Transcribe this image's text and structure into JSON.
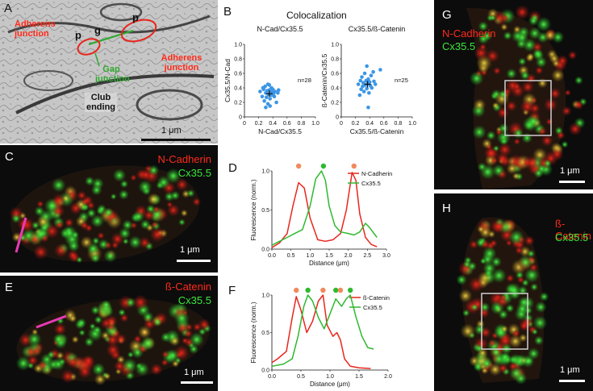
{
  "panels": {
    "A": {
      "letter": "A",
      "labels": {
        "adherens_left": "Adherens junction",
        "adherens_right": "Adherens junction",
        "gap": "Gap junction",
        "p1": "p",
        "p2": "p",
        "g": "g",
        "club": "Club ending",
        "scale": "1 μm"
      }
    },
    "B": {
      "letter": "B",
      "title": "Colocalization"
    },
    "C": {
      "letter": "C",
      "label1": "N-Cadherin",
      "label2": "Cx35.5",
      "scale": "1 μm"
    },
    "D": {
      "letter": "D"
    },
    "E": {
      "letter": "E",
      "label1": "ß-Catenin",
      "label2": "Cx35.5",
      "scale": "1 μm"
    },
    "F": {
      "letter": "F"
    },
    "G": {
      "letter": "G",
      "label1": "N-Cadherin",
      "label2": "Cx35.5",
      "scale": "1 μm"
    },
    "H": {
      "letter": "H",
      "label1": "ß-Catenin",
      "label2": "Cx35.5",
      "scale": "1 μm"
    }
  },
  "colors": {
    "red": "#e8261d",
    "green": "#2fb92f",
    "orange": "#f08a5d",
    "blue": "#3b96e6",
    "gap_green": "#2ea82e"
  },
  "chart_data": [
    {
      "type": "scatter",
      "title": "N-Cad/Cx35.5",
      "xlabel": "N-Cad/Cx35.5",
      "ylabel": "Cx35.5/N-Cad",
      "xlim": [
        0,
        1.0
      ],
      "ylim": [
        0,
        1.0
      ],
      "xticks": [
        "0",
        "0.2",
        "0.4",
        "0.6",
        "0.8",
        "1.0"
      ],
      "yticks": [
        "0",
        "0.2",
        "0.4",
        "0.6",
        "0.8",
        "1.0"
      ],
      "annotation": "n=28",
      "points": [
        [
          0.22,
          0.35
        ],
        [
          0.25,
          0.28
        ],
        [
          0.27,
          0.38
        ],
        [
          0.28,
          0.22
        ],
        [
          0.29,
          0.42
        ],
        [
          0.3,
          0.33
        ],
        [
          0.31,
          0.27
        ],
        [
          0.32,
          0.36
        ],
        [
          0.33,
          0.18
        ],
        [
          0.34,
          0.31
        ],
        [
          0.35,
          0.44
        ],
        [
          0.35,
          0.37
        ],
        [
          0.36,
          0.25
        ],
        [
          0.37,
          0.34
        ],
        [
          0.38,
          0.4
        ],
        [
          0.38,
          0.3
        ],
        [
          0.39,
          0.36
        ],
        [
          0.4,
          0.38
        ],
        [
          0.41,
          0.32
        ],
        [
          0.42,
          0.28
        ],
        [
          0.43,
          0.35
        ],
        [
          0.45,
          0.2
        ],
        [
          0.47,
          0.33
        ],
        [
          0.3,
          0.13
        ],
        [
          0.33,
          0.45
        ],
        [
          0.26,
          0.4
        ],
        [
          0.48,
          0.37
        ],
        [
          0.36,
          0.15
        ]
      ],
      "mean": [
        0.35,
        0.32
      ]
    },
    {
      "type": "scatter",
      "title": "Cx35.5/ß-Catenin",
      "xlabel": "Cx35.5/ß-Catenin",
      "ylabel": "ß-Catenin/Cx35.5",
      "xlim": [
        0,
        1.0
      ],
      "ylim": [
        0,
        1.0
      ],
      "xticks": [
        "0",
        "0.2",
        "0.4",
        "0.6",
        "0.8",
        "1.0"
      ],
      "yticks": [
        "0",
        "0.2",
        "0.4",
        "0.6",
        "0.8",
        "1.0"
      ],
      "annotation": "n=25",
      "points": [
        [
          0.24,
          0.45
        ],
        [
          0.27,
          0.5
        ],
        [
          0.28,
          0.38
        ],
        [
          0.29,
          0.55
        ],
        [
          0.3,
          0.42
        ],
        [
          0.31,
          0.47
        ],
        [
          0.32,
          0.35
        ],
        [
          0.33,
          0.6
        ],
        [
          0.34,
          0.44
        ],
        [
          0.35,
          0.5
        ],
        [
          0.36,
          0.39
        ],
        [
          0.36,
          0.7
        ],
        [
          0.37,
          0.46
        ],
        [
          0.38,
          0.52
        ],
        [
          0.39,
          0.33
        ],
        [
          0.4,
          0.48
        ],
        [
          0.41,
          0.43
        ],
        [
          0.42,
          0.57
        ],
        [
          0.43,
          0.4
        ],
        [
          0.45,
          0.62
        ],
        [
          0.46,
          0.49
        ],
        [
          0.55,
          0.65
        ],
        [
          0.38,
          0.13
        ],
        [
          0.48,
          0.45
        ],
        [
          0.26,
          0.3
        ]
      ],
      "mean": [
        0.37,
        0.45
      ]
    },
    {
      "type": "line",
      "xlabel": "Distance (μm)",
      "ylabel": "Fluorescence (norm.)",
      "xlim": [
        0,
        3.0
      ],
      "ylim": [
        0,
        1.0
      ],
      "xticks": [
        "0.0",
        "0.5",
        "1.0",
        "1.5",
        "2.0",
        "2.5",
        "3.0"
      ],
      "yticks": [
        "0.0",
        "0.5",
        "1.0"
      ],
      "series": [
        {
          "name": "N-Cadherin",
          "color": "red",
          "x": [
            0,
            0.2,
            0.4,
            0.55,
            0.7,
            0.85,
            1.0,
            1.2,
            1.4,
            1.6,
            1.8,
            1.95,
            2.1,
            2.2,
            2.3,
            2.45,
            2.6,
            2.75
          ],
          "y": [
            0.02,
            0.08,
            0.2,
            0.55,
            0.85,
            0.78,
            0.4,
            0.12,
            0.1,
            0.12,
            0.2,
            0.5,
            0.98,
            0.88,
            0.45,
            0.15,
            0.06,
            0.03
          ]
        },
        {
          "name": "Cx35.5",
          "color": "green",
          "x": [
            0,
            0.2,
            0.4,
            0.6,
            0.8,
            1.0,
            1.15,
            1.3,
            1.4,
            1.5,
            1.65,
            1.8,
            2.0,
            2.15,
            2.3,
            2.45,
            2.55,
            2.75
          ],
          "y": [
            0.05,
            0.1,
            0.15,
            0.2,
            0.25,
            0.55,
            0.9,
            1.0,
            0.88,
            0.55,
            0.3,
            0.22,
            0.2,
            0.18,
            0.22,
            0.33,
            0.28,
            0.15
          ]
        }
      ],
      "markers": [
        {
          "x": 0.7,
          "color": "orange"
        },
        {
          "x": 1.35,
          "color": "green"
        },
        {
          "x": 2.15,
          "color": "orange"
        }
      ]
    },
    {
      "type": "line",
      "xlabel": "Distance (μm)",
      "ylabel": "Fluorescence (norm.)",
      "xlim": [
        0,
        2.0
      ],
      "ylim": [
        0,
        1.0
      ],
      "xticks": [
        "0.0",
        "0.5",
        "1.0",
        "1.5",
        "2.0"
      ],
      "yticks": [
        "0.0",
        "0.5",
        "1.0"
      ],
      "series": [
        {
          "name": "ß-Catenin",
          "color": "red",
          "x": [
            0,
            0.1,
            0.25,
            0.35,
            0.42,
            0.5,
            0.6,
            0.7,
            0.8,
            0.88,
            0.95,
            1.05,
            1.12,
            1.18,
            1.25,
            1.35,
            1.5,
            1.7
          ],
          "y": [
            0.1,
            0.15,
            0.25,
            0.7,
            0.98,
            0.8,
            0.5,
            0.65,
            0.92,
            1.0,
            0.6,
            0.45,
            0.5,
            0.4,
            0.15,
            0.05,
            0.03,
            0.02
          ]
        },
        {
          "name": "Cx35.5",
          "color": "green",
          "x": [
            0,
            0.2,
            0.35,
            0.45,
            0.55,
            0.62,
            0.7,
            0.8,
            0.9,
            1.0,
            1.1,
            1.2,
            1.28,
            1.35,
            1.45,
            1.55,
            1.65,
            1.75
          ],
          "y": [
            0.05,
            0.08,
            0.15,
            0.45,
            0.85,
            1.0,
            0.92,
            0.7,
            0.55,
            0.75,
            0.95,
            0.85,
            0.95,
            1.0,
            0.7,
            0.45,
            0.3,
            0.28
          ]
        }
      ],
      "markers": [
        {
          "x": 0.42,
          "color": "orange"
        },
        {
          "x": 0.62,
          "color": "green"
        },
        {
          "x": 0.88,
          "color": "orange"
        },
        {
          "x": 1.1,
          "color": "green"
        },
        {
          "x": 1.18,
          "color": "orange"
        },
        {
          "x": 1.35,
          "color": "green"
        }
      ]
    }
  ]
}
